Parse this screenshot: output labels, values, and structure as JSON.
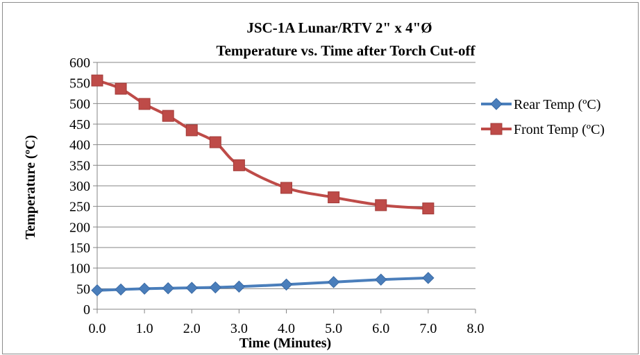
{
  "chart_data": {
    "type": "line",
    "title": "JSC-1A Lunar/RTV 2\" x 4\"Ø",
    "subtitle": "Temperature vs. Time after Torch Cut-off",
    "xlabel": "Time (Minutes)",
    "ylabel": "Temperature (ºC)",
    "xlim": [
      0,
      8
    ],
    "ylim": [
      0,
      600
    ],
    "x_ticks": [
      "0.0",
      "1.0",
      "2.0",
      "3.0",
      "4.0",
      "5.0",
      "6.0",
      "7.0",
      "8.0"
    ],
    "y_ticks": [
      "0",
      "50",
      "100",
      "150",
      "200",
      "250",
      "300",
      "350",
      "400",
      "450",
      "500",
      "550",
      "600"
    ],
    "grid": "horizontal",
    "legend_position": "right",
    "series": [
      {
        "name": "Rear Temp (ºC)",
        "color": "#4a7ebb",
        "marker": "diamond",
        "x": [
          0,
          0.5,
          1,
          1.5,
          2,
          2.5,
          3,
          4,
          5,
          6,
          7
        ],
        "y": [
          46,
          48,
          50,
          51,
          52,
          53,
          55,
          60,
          66,
          72,
          76
        ]
      },
      {
        "name": "Front Temp (ºC)",
        "color": "#be4b48",
        "marker": "square",
        "x": [
          0,
          0.5,
          1,
          1.5,
          2,
          2.5,
          3,
          4,
          5,
          6,
          7
        ],
        "y": [
          556,
          536,
          499,
          470,
          435,
          406,
          350,
          295,
          272,
          253,
          245
        ]
      }
    ]
  }
}
